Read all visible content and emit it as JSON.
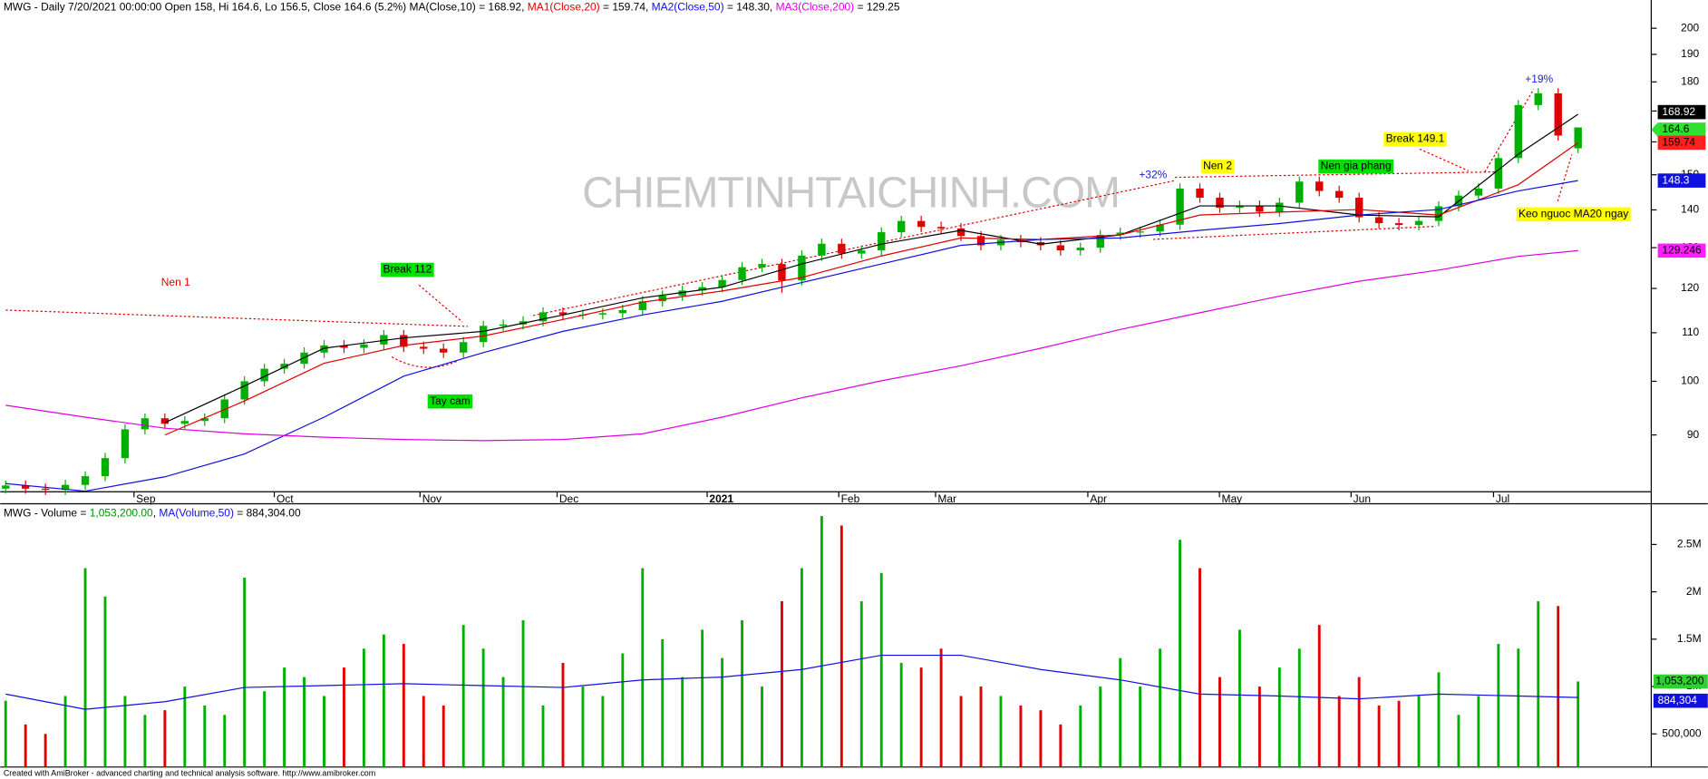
{
  "header": {
    "price_segments": [
      {
        "text": "MWG - Daily 7/20/2021 00:00:00 Open 158, Hi 164.6, Lo 156.5, Close 164.6 (5.2%) MA(Close,10) = 168.92, ",
        "color": "#000000"
      },
      {
        "text": "MA1(Close,20)",
        "color": "#e00000"
      },
      {
        "text": " = 159.74, ",
        "color": "#000000"
      },
      {
        "text": "MA2(Close,50)",
        "color": "#1010e0"
      },
      {
        "text": " = 148.30, ",
        "color": "#000000"
      },
      {
        "text": "MA3(Close,200)",
        "color": "#e000e0"
      },
      {
        "text": " = 129.25",
        "color": "#000000"
      }
    ],
    "volume_segments": [
      {
        "text": "MWG - Volume = ",
        "color": "#000000"
      },
      {
        "text": "1,053,200.00",
        "color": "#009000"
      },
      {
        "text": ", ",
        "color": "#000000"
      },
      {
        "text": "MA(Volume,50)",
        "color": "#1010e0"
      },
      {
        "text": " = 884,304.00",
        "color": "#000000"
      }
    ]
  },
  "watermark": "CHIEMTINHTAICHINH.COM",
  "footer": "Created with AmiBroker - advanced charting and technical analysis software. http://www.amibroker.com",
  "annotations": [
    {
      "text": "Nen 1",
      "color": "#e00000"
    },
    {
      "text": "Break 112",
      "box": "#00e000"
    },
    {
      "text": "Tay cam",
      "box": "#00e000"
    },
    {
      "text": "+32%",
      "color": "#2020e0"
    },
    {
      "text": "Nen 2",
      "box": "#ffff00"
    },
    {
      "text": "Nen gia phang",
      "box": "#00e000"
    },
    {
      "text": "Break 149.1",
      "box": "#ffff00"
    },
    {
      "text": "+19%",
      "color": "#2020e0"
    },
    {
      "text": "Keo nguoc MA20 ngay",
      "box": "#ffff00"
    }
  ],
  "chart_data": [
    {
      "type": "candlestick",
      "log_scale": true,
      "up_color": "#00b000",
      "down_color": "#e00000",
      "ylim": [
        80.5,
        211.4
      ],
      "yticks": [
        90,
        100,
        110,
        120,
        130,
        140,
        150,
        160,
        170,
        180,
        190,
        200
      ],
      "xticks": [
        "Sep",
        "Oct",
        "Nov",
        "Dec",
        "2021",
        "Feb",
        "Mar",
        "Apr",
        "May",
        "Jun",
        "Jul"
      ],
      "open": [
        81,
        81.5,
        81,
        80.8,
        81.6,
        83,
        86,
        91,
        93,
        92,
        92.5,
        93,
        96.5,
        100,
        102.5,
        103.5,
        105.8,
        107.3,
        106.8,
        107.5,
        109.5,
        107,
        106.6,
        105.8,
        108,
        111.5,
        111.8,
        112.5,
        114.5,
        114,
        114,
        114.3,
        115,
        117,
        118.3,
        119.5,
        120.3,
        122,
        125.1,
        125.9,
        121.9,
        128,
        131,
        128.5,
        129.3,
        134,
        137,
        135.4,
        135,
        133,
        130.6,
        132,
        131.4,
        130.6,
        129.3,
        130,
        133.3,
        133.9,
        134.2,
        136,
        146,
        143.4,
        140.6,
        141.2,
        139.5,
        142,
        148,
        145.3,
        143.4,
        138,
        136.4,
        135.9,
        137,
        141,
        144,
        146,
        155,
        172,
        176,
        158
      ],
      "high": [
        82.3,
        82.3,
        81.8,
        82.4,
        83.8,
        86.9,
        91.9,
        93.9,
        93.9,
        93.4,
        93.9,
        97.5,
        101,
        103.5,
        104.5,
        106.9,
        108.4,
        108.4,
        108.6,
        110.6,
        110.6,
        108.1,
        107.7,
        109.1,
        112.6,
        112.9,
        113.6,
        115.6,
        115.6,
        115.1,
        115.4,
        116.2,
        118.2,
        119.5,
        120.7,
        121.5,
        123.2,
        126.4,
        127.2,
        127.2,
        129.3,
        132.3,
        132.3,
        130.6,
        135.3,
        138.4,
        138.4,
        136.8,
        136.4,
        134.3,
        133.3,
        133.3,
        132.7,
        131.9,
        131.3,
        134.6,
        135.2,
        135.5,
        137.4,
        147.5,
        147.5,
        144.8,
        142.6,
        142.6,
        143.4,
        149.5,
        149.5,
        146.8,
        144.8,
        139.4,
        137.8,
        138.4,
        142.4,
        145.4,
        147.5,
        156.6,
        173.7,
        177.8,
        177.8,
        164.6
      ],
      "low": [
        80.2,
        80.2,
        80,
        80,
        80.8,
        82.2,
        85.1,
        90.1,
        91.1,
        91.1,
        91.6,
        92.1,
        95.5,
        99,
        101.5,
        102.5,
        104.7,
        105.7,
        105.7,
        106.4,
        105.9,
        105.5,
        104.7,
        104.7,
        106.9,
        110.4,
        110.7,
        111.4,
        112.9,
        112.9,
        112.9,
        113.2,
        113.9,
        115.8,
        117.1,
        118.3,
        119.1,
        120.8,
        123.9,
        119,
        120.7,
        126.7,
        127.2,
        127.2,
        128,
        132.7,
        134,
        133.7,
        131.7,
        129.3,
        129.3,
        130.1,
        129.3,
        128,
        128,
        128.7,
        132,
        132.6,
        132.9,
        134.6,
        142,
        139.2,
        139.2,
        138.1,
        138.1,
        140.6,
        143.8,
        142,
        136.6,
        135,
        134.5,
        134.5,
        135.6,
        139.6,
        142.6,
        144.5,
        153.5,
        170.3,
        160.4,
        156.5
      ],
      "close": [
        81.5,
        81,
        80.8,
        81.6,
        83,
        86,
        91,
        93,
        92,
        92.5,
        93,
        96.5,
        100,
        102.5,
        103.5,
        105.8,
        107.3,
        106.8,
        107.5,
        109.5,
        107,
        106.6,
        105.8,
        108,
        111.5,
        111.8,
        112.5,
        114.5,
        114,
        114,
        114.3,
        115,
        117,
        118.3,
        119.5,
        120.3,
        122,
        125.1,
        125.9,
        121.9,
        128,
        131,
        128.5,
        129.3,
        134,
        137,
        135.4,
        135,
        133,
        130.6,
        132,
        131.4,
        130.6,
        129.3,
        130,
        133.3,
        133.9,
        134.2,
        136,
        146,
        143.4,
        140.6,
        141.2,
        139.5,
        142,
        148,
        145.3,
        143.4,
        138,
        136.4,
        135.9,
        137,
        141,
        144,
        146,
        155,
        172,
        176,
        162,
        164.6
      ],
      "series": [
        {
          "color": "#000000",
          "values": [
            null,
            null,
            92.2,
            99.1,
            106.7,
            108.9,
            110.3,
            113.9,
            117.8,
            120.3,
            125.9,
            130.9,
            134.5,
            130.9,
            133.3,
            141.1,
            141.1,
            138.6,
            138.1,
            156.2,
            168.92
          ]
        },
        {
          "color": "#e00000",
          "values": [
            null,
            null,
            90,
            96.2,
            103.6,
            107.3,
            109.3,
            112.9,
            116.8,
            119.4,
            122.6,
            127.9,
            132.5,
            132.1,
            133.3,
            138.6,
            139.4,
            140.1,
            138.6,
            147.1,
            159.74
          ]
        },
        {
          "color": "#1010e0",
          "values": [
            81.8,
            80.6,
            82.9,
            86.7,
            93.2,
            101,
            105.8,
            110.3,
            113.9,
            117,
            121.4,
            125.9,
            130.6,
            132.1,
            132.5,
            134.5,
            136.3,
            138.6,
            140.1,
            145.3,
            148.3
          ]
        },
        {
          "color": "#e000e0",
          "values": [
            95.4,
            93.2,
            91.2,
            90.2,
            89.6,
            89.2,
            89,
            89.2,
            90.2,
            93.2,
            96.8,
            100.1,
            103.1,
            106.7,
            110.7,
            114.4,
            118.2,
            121.7,
            124.4,
            127.8,
            129.246
          ]
        }
      ]
    },
    {
      "type": "bar",
      "ylim": [
        150000,
        2930000
      ],
      "yticks": [
        {
          "value": 500000,
          "label": "500,000"
        },
        {
          "value": 1000000,
          "label": "1M"
        },
        {
          "value": 1500000,
          "label": "1.5M"
        },
        {
          "value": 2000000,
          "label": "2M"
        },
        {
          "value": 2500000,
          "label": "2.5M"
        }
      ],
      "values": [
        850000,
        600000,
        500000,
        900000,
        2250000,
        1950000,
        900000,
        700000,
        750000,
        1000000,
        800000,
        700000,
        2150000,
        950000,
        1200000,
        1100000,
        900000,
        1200000,
        1400000,
        1550000,
        1450000,
        900000,
        800000,
        1650000,
        1400000,
        1100000,
        1700000,
        800000,
        1250000,
        1000000,
        900000,
        1350000,
        2250000,
        1500000,
        1100000,
        1600000,
        1300000,
        1700000,
        1000000,
        1900000,
        2250000,
        2800000,
        2700000,
        1900000,
        2200000,
        1250000,
        1200000,
        1400000,
        900000,
        1000000,
        900000,
        800000,
        750000,
        600000,
        800000,
        1000000,
        1300000,
        1000000,
        1400000,
        2550000,
        2250000,
        1100000,
        1600000,
        1000000,
        1200000,
        1400000,
        1650000,
        900000,
        1100000,
        800000,
        850000,
        900000,
        1150000,
        700000,
        900000,
        1450000,
        1400000,
        1900000,
        1850000,
        1053200
      ],
      "last_label": "1,053,200",
      "series": [
        {
          "color": "#1010e0",
          "badge": "884,304",
          "values": [
            920000,
            760000,
            840000,
            990000,
            1010000,
            1030000,
            1010000,
            990000,
            1070000,
            1100000,
            1180000,
            1330000,
            1330000,
            1180000,
            1070000,
            920000,
            900000,
            870000,
            920000,
            900000,
            884304
          ]
        }
      ]
    }
  ]
}
